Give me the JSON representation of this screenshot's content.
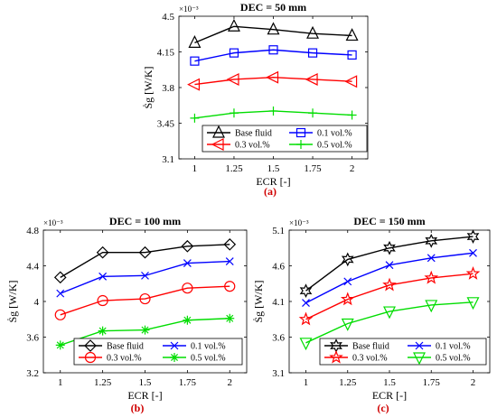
{
  "chart_data": [
    {
      "type": "line",
      "title": "DEC = 50 mm",
      "panel_label": "(a)",
      "xlabel": "ECR [-]",
      "ylabel": "Ṡg [W/K]",
      "y_exponent": "×10⁻³",
      "x": [
        1,
        1.25,
        1.5,
        1.75,
        2
      ],
      "x_ticks": [
        "1",
        "1.25",
        "1.5",
        "1.75",
        "2"
      ],
      "xlim": [
        0.9,
        2.1
      ],
      "ylim": [
        3.1,
        4.5
      ],
      "y_ticks": [
        "3.1",
        "3.45",
        "3.8",
        "4.15",
        "4.5"
      ],
      "y_tick_values": [
        3.1,
        3.45,
        3.8,
        4.15,
        4.5
      ],
      "grid": false,
      "legend_position": "bottom",
      "legend_columns": 2,
      "series": [
        {
          "name": "Base fluid",
          "color": "#000000",
          "marker": "triangle-up",
          "values": [
            4.24,
            4.4,
            4.37,
            4.33,
            4.31
          ]
        },
        {
          "name": "0.1 vol.%",
          "color": "#0000ff",
          "marker": "square",
          "values": [
            4.06,
            4.14,
            4.17,
            4.14,
            4.12
          ]
        },
        {
          "name": "0.3 vol.%",
          "color": "#ff0000",
          "marker": "triangle-left",
          "values": [
            3.83,
            3.88,
            3.9,
            3.88,
            3.86
          ]
        },
        {
          "name": "0.5 vol.%",
          "color": "#00dd00",
          "marker": "plus",
          "values": [
            3.5,
            3.55,
            3.57,
            3.55,
            3.53
          ]
        }
      ]
    },
    {
      "type": "line",
      "title": "DEC = 100 mm",
      "panel_label": "(b)",
      "xlabel": "ECR [-]",
      "ylabel": "Ṡg [W/K]",
      "y_exponent": "×10⁻³",
      "x": [
        1,
        1.25,
        1.5,
        1.75,
        2
      ],
      "x_ticks": [
        "1",
        "1.25",
        "1.5",
        "1.75",
        "2"
      ],
      "xlim": [
        0.9,
        2.1
      ],
      "ylim": [
        3.2,
        4.8
      ],
      "y_ticks": [
        "3.2",
        "3.6",
        "4",
        "4.4",
        "4.8"
      ],
      "y_tick_values": [
        3.2,
        3.6,
        4.0,
        4.4,
        4.8
      ],
      "grid": false,
      "legend_position": "bottom",
      "legend_columns": 2,
      "series": [
        {
          "name": "Base fluid",
          "color": "#000000",
          "marker": "diamond",
          "values": [
            4.27,
            4.55,
            4.55,
            4.62,
            4.64
          ]
        },
        {
          "name": "0.1 vol.%",
          "color": "#0000ff",
          "marker": "x",
          "values": [
            4.09,
            4.28,
            4.29,
            4.43,
            4.45
          ]
        },
        {
          "name": "0.3 vol.%",
          "color": "#ff0000",
          "marker": "circle",
          "values": [
            3.85,
            4.01,
            4.03,
            4.15,
            4.17
          ]
        },
        {
          "name": "0.5 vol.%",
          "color": "#00dd00",
          "marker": "asterisk",
          "values": [
            3.51,
            3.67,
            3.68,
            3.79,
            3.81
          ]
        }
      ]
    },
    {
      "type": "line",
      "title": "DEC = 150 mm",
      "panel_label": "(c)",
      "xlabel": "ECR [-]",
      "ylabel": "Ṡg [W/K]",
      "y_exponent": "×10⁻³",
      "x": [
        1,
        1.25,
        1.5,
        1.75,
        2
      ],
      "x_ticks": [
        "1",
        "1.25",
        "1.5",
        "1.75",
        "2"
      ],
      "xlim": [
        0.9,
        2.1
      ],
      "ylim": [
        3.1,
        5.1
      ],
      "y_ticks": [
        "3.1",
        "3.6",
        "4.1",
        "4.6",
        "5.1"
      ],
      "y_tick_values": [
        3.1,
        3.6,
        4.1,
        4.6,
        5.1
      ],
      "grid": false,
      "legend_position": "bottom",
      "legend_columns": 2,
      "series": [
        {
          "name": "Base fluid",
          "color": "#000000",
          "marker": "hexagram",
          "values": [
            4.25,
            4.69,
            4.85,
            4.95,
            5.01
          ]
        },
        {
          "name": "0.1 vol.%",
          "color": "#0000ff",
          "marker": "x",
          "values": [
            4.08,
            4.38,
            4.61,
            4.71,
            4.78
          ]
        },
        {
          "name": "0.3 vol.%",
          "color": "#ff0000",
          "marker": "pentagram",
          "values": [
            3.85,
            4.13,
            4.33,
            4.43,
            4.49
          ]
        },
        {
          "name": "0.5 vol.%",
          "color": "#00dd00",
          "marker": "triangle-down",
          "values": [
            3.52,
            3.79,
            3.96,
            4.05,
            4.09
          ]
        }
      ]
    }
  ]
}
